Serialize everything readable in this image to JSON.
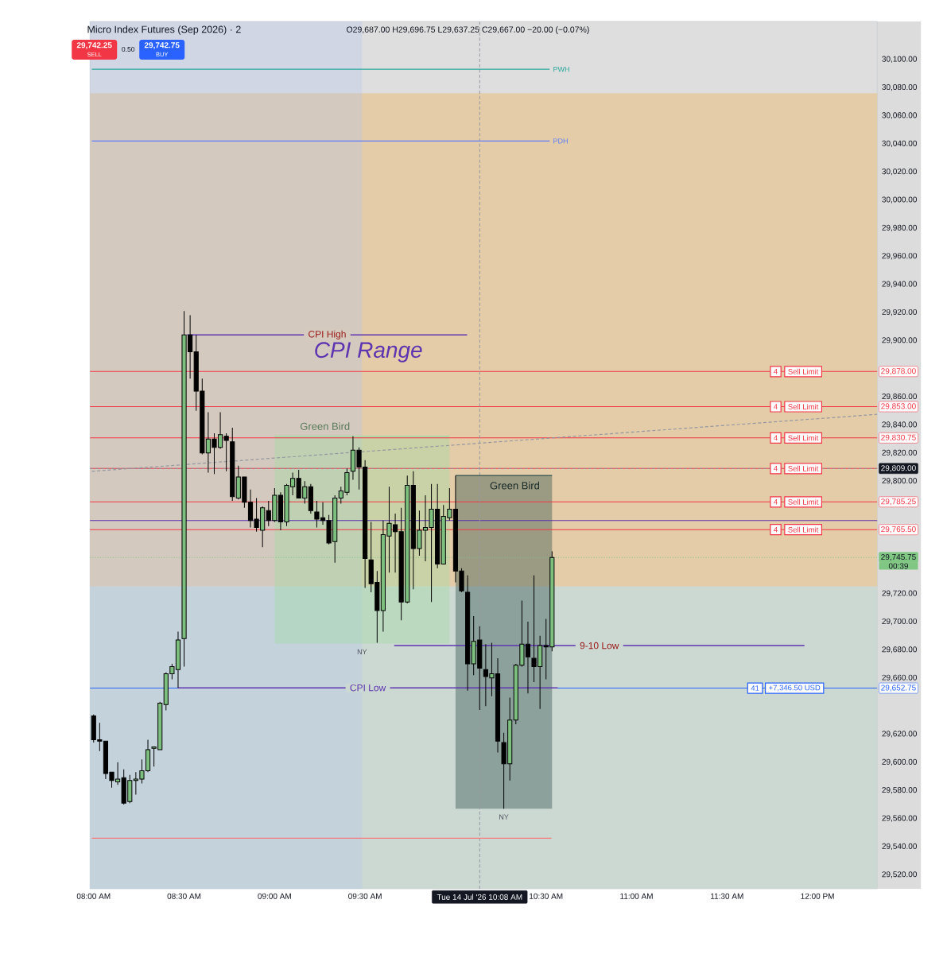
{
  "chart_data": {
    "type": "candlestick",
    "title": "Micro Index Futures (Sep 2026) · 2",
    "subtitle": "O29,687.00 H29,696.75 L29,637.25 C29,667.00 −20.00 (−0.07%)",
    "x": [
      8.0,
      8.0333,
      8.0667,
      8.1,
      8.1333,
      8.1667,
      8.2,
      8.2333,
      8.2667,
      8.3,
      8.3333,
      8.3667,
      8.4,
      8.4333,
      8.4667,
      8.5,
      8.5333,
      8.5667,
      8.6,
      8.6333,
      8.6667,
      8.7,
      8.7333,
      8.7667,
      8.8,
      8.8333,
      8.8667,
      8.9,
      8.9333,
      8.9667,
      9.0,
      9.0333,
      9.0667,
      9.1,
      9.1333,
      9.1667,
      9.2,
      9.2333,
      9.2667,
      9.3,
      9.3333,
      9.3667,
      9.4,
      9.4333,
      9.4667,
      9.5,
      9.5333,
      9.5667,
      9.6,
      9.6333,
      9.6667,
      9.7,
      9.7333,
      9.7667,
      9.8,
      9.8333,
      9.8667,
      9.9,
      9.9333,
      9.9667,
      10.0,
      10.0333,
      10.0667,
      10.1,
      10.1333,
      10.1667,
      10.2,
      10.2333,
      10.2667,
      10.3,
      10.3333,
      10.3667,
      10.4,
      10.4333,
      10.4667,
      10.5,
      10.5333
    ],
    "ohlc": [
      [
        29633,
        29634,
        29614,
        29616
      ],
      [
        29616,
        29628,
        29608,
        29615
      ],
      [
        29615,
        29615,
        29588,
        29592
      ],
      [
        29593,
        29593,
        29582,
        29587
      ],
      [
        29586,
        29600,
        29584,
        29588
      ],
      [
        29589,
        29595,
        29570,
        29571
      ],
      [
        29572,
        29591,
        29571,
        29587
      ],
      [
        29587,
        29593,
        29577,
        29588
      ],
      [
        29588,
        29602,
        29585,
        29594
      ],
      [
        29594,
        29616,
        29593,
        29609
      ],
      [
        29610,
        29611,
        29597,
        29611
      ],
      [
        29609,
        29643,
        29609,
        29642
      ],
      [
        29641,
        29664,
        29637,
        29663
      ],
      [
        29663,
        29670,
        29659,
        29668
      ],
      [
        29666,
        29693,
        29653,
        29687
      ],
      [
        29688,
        29921,
        29668,
        29904
      ],
      [
        29904,
        29918,
        29873,
        29892
      ],
      [
        29892,
        29904,
        29850,
        29864
      ],
      [
        29864,
        29873,
        29819,
        29820
      ],
      [
        29820,
        29849,
        29806,
        29830
      ],
      [
        29830,
        29834,
        29805,
        29824
      ],
      [
        29824,
        29849,
        29823,
        29833
      ],
      [
        29832,
        29834,
        29807,
        29829
      ],
      [
        29828,
        29838,
        29786,
        29789
      ],
      [
        29788,
        29811,
        29787,
        29803
      ],
      [
        29803,
        29803,
        29781,
        29785
      ],
      [
        29785,
        29794,
        29767,
        29772
      ],
      [
        29773,
        29788,
        29764,
        29767
      ],
      [
        29765,
        29782,
        29753,
        29781
      ],
      [
        29779,
        29786,
        29768,
        29772
      ],
      [
        29772,
        29795,
        29771,
        29790
      ],
      [
        29790,
        29792,
        29765,
        29771
      ],
      [
        29771,
        29798,
        29768,
        29797
      ],
      [
        29796,
        29806,
        29790,
        29802
      ],
      [
        29802,
        29808,
        29788,
        29788
      ],
      [
        29788,
        29800,
        29784,
        29796
      ],
      [
        29796,
        29798,
        29777,
        29779
      ],
      [
        29778,
        29786,
        29767,
        29773
      ],
      [
        29774,
        29785,
        29769,
        29772
      ],
      [
        29772,
        29776,
        29755,
        29756
      ],
      [
        29757,
        29790,
        29742,
        29788
      ],
      [
        29788,
        29796,
        29784,
        29793
      ],
      [
        29792,
        29809,
        29790,
        29806
      ],
      [
        29807,
        29832,
        29801,
        29822
      ],
      [
        29822,
        29824,
        29794,
        29810
      ],
      [
        29810,
        29815,
        29724,
        29745
      ],
      [
        29744,
        29771,
        29721,
        29727
      ],
      [
        29728,
        29736,
        29685,
        29708
      ],
      [
        29708,
        29772,
        29693,
        29762
      ],
      [
        29761,
        29796,
        29735,
        29770
      ],
      [
        29769,
        29777,
        29735,
        29764
      ],
      [
        29764,
        29781,
        29701,
        29714
      ],
      [
        29714,
        29804,
        29713,
        29797
      ],
      [
        29797,
        29807,
        29723,
        29752
      ],
      [
        29752,
        29779,
        29747,
        29765
      ],
      [
        29765,
        29790,
        29743,
        29767
      ],
      [
        29767,
        29798,
        29714,
        29780
      ],
      [
        29780,
        29798,
        29738,
        29741
      ],
      [
        29741,
        29783,
        29741,
        29775
      ],
      [
        29774,
        29795,
        29772,
        29780
      ],
      [
        29780,
        29804,
        29728,
        29736
      ],
      [
        29736,
        29738,
        29721,
        29722
      ],
      [
        29721,
        29733,
        29651,
        29670
      ],
      [
        29670,
        29704,
        29662,
        29686
      ],
      [
        29687,
        29696.75,
        29637.25,
        29667
      ],
      [
        29666,
        29684,
        29640,
        29661
      ],
      [
        29660,
        29685,
        29647,
        29663
      ],
      [
        29663,
        29674,
        29607,
        29615
      ],
      [
        29614,
        29621,
        29567,
        29599
      ],
      [
        29599,
        29646,
        29587,
        29630
      ],
      [
        29630,
        29670,
        29627,
        29669
      ],
      [
        29669,
        29715,
        29668,
        29684
      ],
      [
        29684,
        29700,
        29649,
        29675
      ],
      [
        29674,
        29733,
        29657,
        29668
      ],
      [
        29668,
        29690,
        29638,
        29683
      ],
      [
        29683,
        29702,
        29659,
        29682
      ],
      [
        29682,
        29750,
        29679,
        29745.75
      ]
    ],
    "colors": [
      "#000000",
      "#000000",
      "#000000",
      "#000000",
      "#7dbf7f",
      "#000000",
      "#7dbf7f",
      "#7dbf7f",
      "#7dbf7f",
      "#7dbf7f",
      "#7dbf7f",
      "#7dbf7f",
      "#7dbf7f",
      "#7dbf7f",
      "#7dbf7f",
      "#7dbf7f",
      "#000000",
      "#000000",
      "#000000",
      "#7dbf7f",
      "#000000",
      "#7dbf7f",
      "#000000",
      "#000000",
      "#7dbf7f",
      "#000000",
      "#000000",
      "#000000",
      "#7dbf7f",
      "#000000",
      "#7dbf7f",
      "#000000",
      "#7dbf7f",
      "#7dbf7f",
      "#000000",
      "#7dbf7f",
      "#000000",
      "#000000",
      "#000000",
      "#000000",
      "#7dbf7f",
      "#7dbf7f",
      "#7dbf7f",
      "#7dbf7f",
      "#000000",
      "#000000",
      "#000000",
      "#000000",
      "#7dbf7f",
      "#7dbf7f",
      "#000000",
      "#000000",
      "#7dbf7f",
      "#000000",
      "#7dbf7f",
      "#7dbf7f",
      "#7dbf7f",
      "#000000",
      "#7dbf7f",
      "#7dbf7f",
      "#000000",
      "#000000",
      "#000000",
      "#7dbf7f",
      "#000000",
      "#000000",
      "#7dbf7f",
      "#000000",
      "#000000",
      "#7dbf7f",
      "#7dbf7f",
      "#7dbf7f",
      "#000000",
      "#000000",
      "#7dbf7f",
      "#000000",
      "#7dbf7f"
    ],
    "xlim": [
      7.98,
      12.33
    ],
    "xticks": [
      {
        "value": 8.0,
        "label": "08:00 AM"
      },
      {
        "value": 8.5,
        "label": "08:30 AM"
      },
      {
        "value": 9.0,
        "label": "09:00 AM"
      },
      {
        "value": 9.5,
        "label": "09:30 AM"
      },
      {
        "value": 10.5,
        "label": "10:30 AM"
      },
      {
        "value": 11.0,
        "label": "11:00 AM"
      },
      {
        "value": 11.5,
        "label": "11:30 AM"
      },
      {
        "value": 12.0,
        "label": "12:00 PM"
      }
    ],
    "ylim": [
      29510,
      30127
    ],
    "yticks": [
      {
        "value": 29520,
        "label": "29,520.00"
      },
      {
        "value": 29540,
        "label": "29,540.00"
      },
      {
        "value": 29560,
        "label": "29,560.00"
      },
      {
        "value": 29580,
        "label": "29,580.00"
      },
      {
        "value": 29600,
        "label": "29,600.00"
      },
      {
        "value": 29620,
        "label": "29,620.00"
      },
      {
        "value": 29660,
        "label": "29,660.00"
      },
      {
        "value": 29680,
        "label": "29,680.00"
      },
      {
        "value": 29700,
        "label": "29,700.00"
      },
      {
        "value": 29720,
        "label": "29,720.00"
      },
      {
        "value": 29800,
        "label": "29,800.00"
      },
      {
        "value": 29820,
        "label": "29,820.00"
      },
      {
        "value": 29840,
        "label": "29,840.00"
      },
      {
        "value": 29860,
        "label": "29,860.00"
      },
      {
        "value": 29900,
        "label": "29,900.00"
      },
      {
        "value": 29920,
        "label": "29,920.00"
      },
      {
        "value": 29940,
        "label": "29,940.00"
      },
      {
        "value": 29960,
        "label": "29,960.00"
      },
      {
        "value": 29980,
        "label": "29,980.00"
      },
      {
        "value": 30000,
        "label": "30,000.00"
      },
      {
        "value": 30020,
        "label": "30,020.00"
      },
      {
        "value": 30040,
        "label": "30,040.00"
      },
      {
        "value": 30060,
        "label": "30,060.00"
      },
      {
        "value": 30080,
        "label": "30,080.00"
      },
      {
        "value": 30100,
        "label": "30,100.00"
      }
    ],
    "bands": [
      {
        "axis": "y",
        "from": 29725,
        "to": 30076,
        "color": "#e4cca8"
      },
      {
        "axis": "y",
        "from": 29510,
        "to": 29725,
        "color": "#ccd8d2"
      },
      {
        "axis": "x",
        "from": 7.98,
        "to": 9.4833,
        "color": "#b1c5f3"
      }
    ],
    "series": [
      {
        "type": "line",
        "name": "Green Bird",
        "color": "#a0dda3",
        "x": [
          9.0,
          9.9667
        ],
        "values": [
          29832,
          29832
        ],
        "lower": [
          29684.5,
          29684.5
        ],
        "upper": [
          29832,
          29832
        ]
      },
      {
        "type": "line",
        "name": "Green Bird",
        "color": "#2d4f4b",
        "x": [
          10.0,
          10.5333
        ],
        "values": [
          29804,
          29804
        ],
        "lower": [
          29567,
          29567
        ],
        "upper": [
          29804,
          29804
        ]
      },
      {
        "type": "line",
        "name": "PWH",
        "color": "#26a69a",
        "x": [
          7.99,
          10.52
        ],
        "values": [
          30093,
          30093
        ]
      },
      {
        "type": "line",
        "name": "PDH",
        "color": "#5c7cfa",
        "x": [
          7.99,
          10.52
        ],
        "values": [
          30042,
          30042
        ]
      },
      {
        "type": "line",
        "name": "CPI High",
        "color": "#5e35b1",
        "x": [
          8.517,
          10.064
        ],
        "values": [
          29904,
          29904
        ]
      },
      {
        "type": "line",
        "name": "CPI Low",
        "color": "#5e35b1",
        "x": [
          8.466,
          10.564
        ],
        "values": [
          29653,
          29653
        ]
      },
      {
        "type": "line",
        "name": "9-10 Low",
        "color": "#5e35b1",
        "x": [
          9.661,
          11.928
        ],
        "values": [
          29683,
          29683
        ]
      },
      {
        "type": "line",
        "color": "#f77c80",
        "x": [
          7.99,
          10.53
        ],
        "values": [
          29546,
          29546
        ]
      },
      {
        "type": "line",
        "color": "#9598a1",
        "line_style": "dashed",
        "x": [
          7.99,
          12.33
        ],
        "values": [
          29807,
          29847.5
        ]
      }
    ],
    "ref_lines": [
      {
        "axis": "y",
        "value": 29878,
        "label": "29,878.00",
        "color": "#f23645"
      },
      {
        "axis": "y",
        "value": 29853,
        "label": "29,853.00",
        "color": "#f23645"
      },
      {
        "axis": "y",
        "value": 29830.75,
        "label": "29,830.75",
        "color": "#f23645"
      },
      {
        "axis": "y",
        "value": 29809,
        "color": "#f23645"
      },
      {
        "axis": "y",
        "value": 29785.25,
        "label": "29,785.25",
        "color": "#f23645"
      },
      {
        "axis": "y",
        "value": 29765.5,
        "label": "29,765.50",
        "color": "#f23645"
      },
      {
        "axis": "y",
        "value": 29772,
        "color": "#5b2fb0"
      },
      {
        "axis": "y",
        "value": 29652.75,
        "label": "29,652.75",
        "color": "#2962ff"
      },
      {
        "axis": "y",
        "value": 29745.75,
        "label": "29,745.75",
        "color": "#81c784",
        "line_style": "dotted"
      },
      {
        "axis": "y",
        "value": 29809,
        "label": "29,809.00",
        "color": "#9598a1",
        "line_style": "dashed"
      },
      {
        "axis": "x",
        "value": 10.1333,
        "label": "Tue 14 Jul '26  10:08 AM",
        "color": "#9598a1",
        "line_style": "dashed"
      }
    ],
    "annotations": [
      "29,742.25",
      "SELL",
      "0.50",
      "29,742.75",
      "BUY",
      "NY",
      "NY",
      "00:39",
      "CPI Range",
      {
        "text": "4",
        "x": 11.769,
        "y": 29878
      },
      {
        "text": "Sell Limit",
        "x": 11.921,
        "y": 29878
      },
      {
        "text": "4",
        "x": 11.769,
        "y": 29853
      },
      {
        "text": "Sell Limit",
        "x": 11.921,
        "y": 29853
      },
      {
        "text": "4",
        "x": 11.769,
        "y": 29830.75
      },
      {
        "text": "Sell Limit",
        "x": 11.921,
        "y": 29830.75
      },
      {
        "text": "4",
        "x": 11.769,
        "y": 29809
      },
      {
        "text": "Sell Limit",
        "x": 11.921,
        "y": 29809
      },
      {
        "text": "4",
        "x": 11.769,
        "y": 29785.25
      },
      {
        "text": "Sell Limit",
        "x": 11.921,
        "y": 29785.25
      },
      {
        "text": "4",
        "x": 11.769,
        "y": 29765.5
      },
      {
        "text": "Sell Limit",
        "x": 11.921,
        "y": 29765.5
      },
      {
        "text": "41",
        "x": 11.655,
        "y": 29652.75
      },
      {
        "text": "+7,346.50 USD",
        "x": 11.873,
        "y": 29652.75
      }
    ]
  }
}
